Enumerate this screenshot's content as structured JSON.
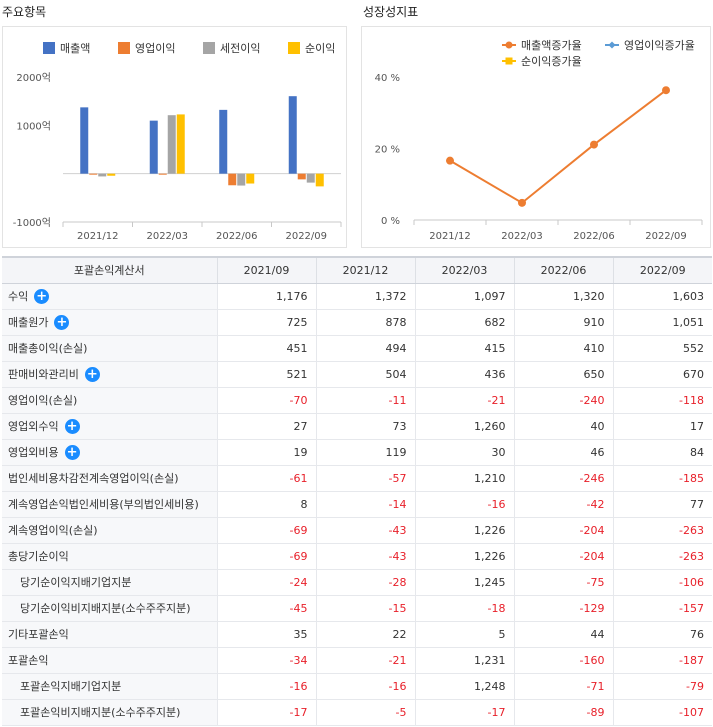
{
  "section_titles": {
    "main": "주요항목",
    "growth": "성장성지표"
  },
  "chart_data": [
    {
      "type": "bar",
      "id": "main",
      "categories": [
        "2021/12",
        "2022/03",
        "2022/06",
        "2022/09"
      ],
      "series": [
        {
          "name": "매출액",
          "color": "#4472c4",
          "values": [
            1372,
            1097,
            1320,
            1603
          ]
        },
        {
          "name": "영업이익",
          "color": "#ed7d31",
          "values": [
            -11,
            -21,
            -240,
            -118
          ]
        },
        {
          "name": "세전이익",
          "color": "#a5a5a5",
          "values": [
            -57,
            1210,
            -246,
            -185
          ]
        },
        {
          "name": "순이익",
          "color": "#ffc000",
          "values": [
            -43,
            1226,
            -204,
            -263
          ]
        }
      ],
      "ylim": [
        -1000,
        2000
      ],
      "yticks": [
        -1000,
        1000,
        2000
      ],
      "ytick_labels": [
        "-1000억",
        "1000억",
        "2000억"
      ],
      "legend_position": "top"
    },
    {
      "type": "line",
      "id": "growth",
      "categories": [
        "2021/12",
        "2022/03",
        "2022/06",
        "2022/09"
      ],
      "series": [
        {
          "name": "매출액증가율",
          "color": "#ed7d31",
          "marker": "circle",
          "values": [
            16.6,
            4.8,
            21.1,
            36.3
          ]
        },
        {
          "name": "영업이익증가율",
          "color": "#5b9bd5",
          "marker": "diamond",
          "values": [
            null,
            null,
            null,
            null
          ]
        },
        {
          "name": "순이익증가율",
          "color": "#ffc000",
          "marker": "square",
          "values": [
            null,
            null,
            null,
            null
          ]
        }
      ],
      "ylim": [
        0,
        40
      ],
      "yticks": [
        0,
        20,
        40
      ],
      "ytick_labels": [
        "0 %",
        "20 %",
        "40 %"
      ],
      "legend_position": "top"
    }
  ],
  "table": {
    "headers": [
      "포괄손익계산서",
      "2021/09",
      "2021/12",
      "2022/03",
      "2022/06",
      "2022/09"
    ],
    "rows": [
      {
        "label": "수익",
        "expand": true,
        "indent": false,
        "values": [
          "1,176",
          "1,372",
          "1,097",
          "1,320",
          "1,603"
        ]
      },
      {
        "label": "매출원가",
        "expand": true,
        "indent": false,
        "values": [
          "725",
          "878",
          "682",
          "910",
          "1,051"
        ]
      },
      {
        "label": "매출총이익(손실)",
        "expand": false,
        "indent": false,
        "values": [
          "451",
          "494",
          "415",
          "410",
          "552"
        ]
      },
      {
        "label": "판매비와관리비",
        "expand": true,
        "indent": false,
        "values": [
          "521",
          "504",
          "436",
          "650",
          "670"
        ]
      },
      {
        "label": "영업이익(손실)",
        "expand": false,
        "indent": false,
        "values": [
          "-70",
          "-11",
          "-21",
          "-240",
          "-118"
        ]
      },
      {
        "label": "영업외수익",
        "expand": true,
        "indent": false,
        "values": [
          "27",
          "73",
          "1,260",
          "40",
          "17"
        ]
      },
      {
        "label": "영업외비용",
        "expand": true,
        "indent": false,
        "values": [
          "19",
          "119",
          "30",
          "46",
          "84"
        ]
      },
      {
        "label": "법인세비용차감전계속영업이익(손실)",
        "expand": false,
        "indent": false,
        "values": [
          "-61",
          "-57",
          "1,210",
          "-246",
          "-185"
        ]
      },
      {
        "label": "계속영업손익법인세비용(부의법인세비용)",
        "expand": false,
        "indent": false,
        "values": [
          "8",
          "-14",
          "-16",
          "-42",
          "77"
        ]
      },
      {
        "label": "계속영업이익(손실)",
        "expand": false,
        "indent": false,
        "values": [
          "-69",
          "-43",
          "1,226",
          "-204",
          "-263"
        ]
      },
      {
        "label": "총당기순이익",
        "expand": false,
        "indent": false,
        "values": [
          "-69",
          "-43",
          "1,226",
          "-204",
          "-263"
        ]
      },
      {
        "label": "당기순이익지배기업지분",
        "expand": false,
        "indent": true,
        "values": [
          "-24",
          "-28",
          "1,245",
          "-75",
          "-106"
        ]
      },
      {
        "label": "당기순이익비지배지분(소수주주지분)",
        "expand": false,
        "indent": true,
        "values": [
          "-45",
          "-15",
          "-18",
          "-129",
          "-157"
        ]
      },
      {
        "label": "기타포괄손익",
        "expand": false,
        "indent": false,
        "values": [
          "35",
          "22",
          "5",
          "44",
          "76"
        ]
      },
      {
        "label": "포괄손익",
        "expand": false,
        "indent": false,
        "values": [
          "-34",
          "-21",
          "1,231",
          "-160",
          "-187"
        ]
      },
      {
        "label": "포괄손익지배기업지분",
        "expand": false,
        "indent": true,
        "values": [
          "-16",
          "-16",
          "1,248",
          "-71",
          "-79"
        ]
      },
      {
        "label": "포괄손익비지배지분(소수주주지분)",
        "expand": false,
        "indent": true,
        "values": [
          "-17",
          "-5",
          "-17",
          "-89",
          "-107"
        ]
      }
    ]
  }
}
